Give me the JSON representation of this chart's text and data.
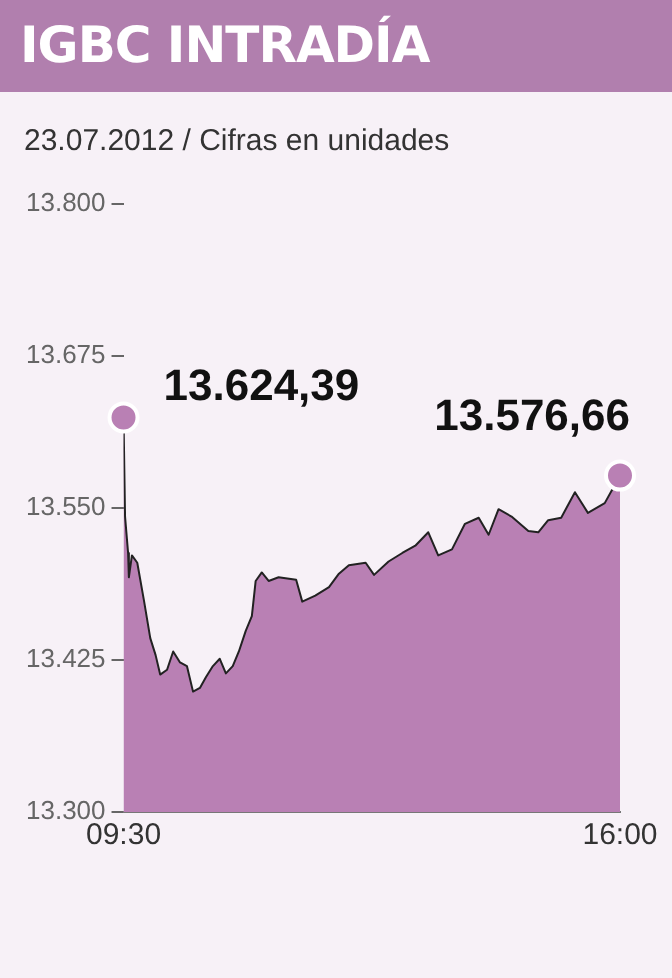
{
  "chart_data": {
    "type": "area",
    "title": "IGBC INTRADÍA",
    "subtitle": "23.07.2012 / Cifras en unidades",
    "color": "#b980b4",
    "x": [
      9.5,
      9.52,
      9.56,
      9.57,
      9.61,
      9.68,
      9.77,
      9.85,
      9.92,
      9.98,
      10.07,
      10.15,
      10.24,
      10.33,
      10.41,
      10.5,
      10.58,
      10.67,
      10.76,
      10.84,
      10.93,
      11.01,
      11.1,
      11.18,
      11.23,
      11.31,
      11.4,
      11.53,
      11.76,
      11.84,
      12.01,
      12.19,
      12.32,
      12.45,
      12.67,
      12.78,
      12.97,
      13.15,
      13.32,
      13.49,
      13.62,
      13.8,
      13.97,
      14.15,
      14.28,
      14.41,
      14.58,
      14.8,
      14.93,
      15.06,
      15.23,
      15.41,
      15.58,
      15.8,
      16.0
    ],
    "values": [
      13624.39,
      13543,
      13513,
      13493,
      13511,
      13505,
      13473,
      13443,
      13429,
      13413,
      13417,
      13432,
      13423,
      13420,
      13399,
      13402,
      13411,
      13420,
      13426,
      13414,
      13420,
      13432,
      13449,
      13461,
      13490,
      13497,
      13490,
      13493,
      13491,
      13473,
      13478,
      13485,
      13496,
      13503,
      13505,
      13495,
      13506,
      13513,
      13519,
      13530,
      13511,
      13516,
      13537,
      13542,
      13528,
      13549,
      13543,
      13531,
      13530,
      13540,
      13542,
      13563,
      13546,
      13554,
      13576.66
    ],
    "value_labels": [
      "13.624,39",
      null,
      null,
      null,
      null,
      null,
      null,
      null,
      null,
      null,
      null,
      null,
      null,
      null,
      null,
      null,
      null,
      null,
      null,
      null,
      null,
      null,
      null,
      null,
      null,
      null,
      null,
      null,
      null,
      null,
      null,
      null,
      null,
      null,
      null,
      null,
      null,
      null,
      null,
      null,
      null,
      null,
      null,
      null,
      null,
      null,
      null,
      null,
      null,
      null,
      null,
      null,
      null,
      null,
      "13.576,66"
    ],
    "xlim": [
      9.5,
      16.0
    ],
    "xticks": [
      {
        "value": 9.5,
        "label": "09:30"
      },
      {
        "value": 16.0,
        "label": "16:00"
      }
    ],
    "ylim": [
      13300,
      13800
    ],
    "yticks": [
      {
        "value": 13300,
        "label": "13.300"
      },
      {
        "value": 13425,
        "label": "13.425"
      },
      {
        "value": 13550,
        "label": "13.550"
      },
      {
        "value": 13675,
        "label": "13.675"
      },
      {
        "value": 13800,
        "label": "13.800"
      }
    ],
    "grid": false,
    "legend": false
  }
}
